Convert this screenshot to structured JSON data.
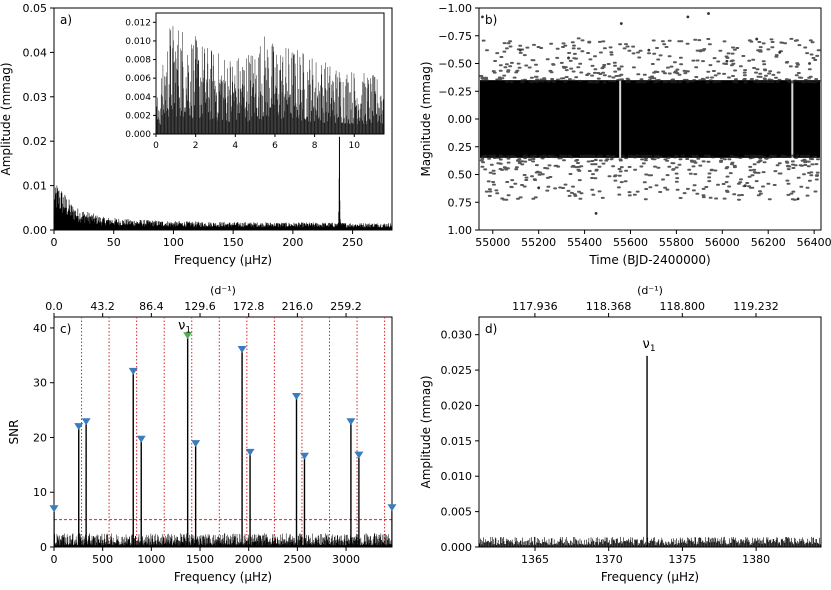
{
  "chart_data": [
    {
      "id": "a",
      "type": "line",
      "panel_label": "a)",
      "xlabel": "Frequency (µHz)",
      "ylabel": "Amplitude (mmag)",
      "xlim": [
        0,
        283
      ],
      "ylim": [
        0,
        0.05
      ],
      "x_ticks": [
        0,
        50,
        100,
        150,
        200,
        250
      ],
      "y_ticks": [
        0.0,
        0.01,
        0.02,
        0.03,
        0.04,
        0.05
      ],
      "y_tick_labels": [
        "0.00",
        "0.01",
        "0.02",
        "0.03",
        "0.04",
        "0.05"
      ],
      "series": [
        {
          "name": "amplitude spectrum (low-frequency)",
          "x": [
            0,
            2,
            5,
            10,
            15,
            20,
            30,
            40,
            60,
            100,
            150,
            200,
            238,
            239,
            240,
            250,
            283
          ],
          "values": [
            0.008,
            0.011,
            0.01,
            0.008,
            0.006,
            0.005,
            0.004,
            0.003,
            0.0025,
            0.002,
            0.0018,
            0.0017,
            0.0017,
            0.021,
            0.0017,
            0.0016,
            0.0016
          ]
        }
      ],
      "inset": {
        "xlim": [
          0,
          11.5
        ],
        "ylim": [
          0,
          0.013
        ],
        "x_ticks": [
          0,
          2,
          4,
          6,
          8,
          10
        ],
        "y_ticks": [
          0.0,
          0.002,
          0.004,
          0.006,
          0.008,
          0.01,
          0.012
        ],
        "y_tick_labels": [
          "0.000",
          "0.002",
          "0.004",
          "0.006",
          "0.008",
          "0.010",
          "0.012"
        ],
        "series": [
          {
            "name": "inset amplitude",
            "x": [
              0,
              0.7,
              1.4,
              2,
              3,
              4,
              5,
              5.5,
              6,
              7,
              8,
              9,
              10,
              11.5
            ],
            "values": [
              0.003,
              0.0122,
              0.012,
              0.0105,
              0.009,
              0.0085,
              0.0095,
              0.011,
              0.0098,
              0.0095,
              0.0085,
              0.0075,
              0.007,
              0.006
            ]
          }
        ]
      }
    },
    {
      "id": "b",
      "type": "scatter",
      "panel_label": "b)",
      "xlabel": "Time (BJD-2400000)",
      "ylabel": "Magnitude (mmag)",
      "xlim": [
        54940,
        56430
      ],
      "ylim": [
        1.0,
        -1.0
      ],
      "y_inverted": true,
      "x_ticks": [
        55000,
        55200,
        55400,
        55600,
        55800,
        56000,
        56200,
        56400
      ],
      "y_ticks": [
        -1.0,
        -0.75,
        -0.5,
        -0.25,
        0.0,
        0.25,
        0.5,
        0.75,
        1.0
      ],
      "y_tick_labels": [
        "−1.00",
        "−0.75",
        "−0.50",
        "−0.25",
        "0.00",
        "0.25",
        "0.50",
        "0.75",
        "1.00"
      ],
      "core_range": [
        -0.35,
        0.35
      ],
      "gaps": [
        55555,
        56305
      ],
      "outliers": [
        [
          54955,
          -0.92
        ],
        [
          55120,
          -0.62
        ],
        [
          55200,
          0.62
        ],
        [
          55330,
          -0.55
        ],
        [
          55450,
          0.85
        ],
        [
          55560,
          -0.86
        ],
        [
          55680,
          -0.62
        ],
        [
          55850,
          -0.92
        ],
        [
          55940,
          -0.95
        ],
        [
          56020,
          -0.52
        ],
        [
          56100,
          0.6
        ],
        [
          56150,
          -0.72
        ],
        [
          56250,
          -0.6
        ],
        [
          56330,
          0.72
        ],
        [
          56380,
          -0.5
        ]
      ]
    },
    {
      "id": "c",
      "type": "line",
      "panel_label": "c)",
      "xlabel": "Frequency (µHz)",
      "ylabel": "SNR",
      "top_axis_label": "(d⁻¹)",
      "xlim": [
        0,
        3472
      ],
      "ylim": [
        0,
        42
      ],
      "x_ticks": [
        0,
        500,
        1000,
        1500,
        2000,
        2500,
        3000
      ],
      "y_ticks": [
        0,
        10,
        20,
        30,
        40
      ],
      "top_ticks_d": [
        0.0,
        43.2,
        86.4,
        129.6,
        172.8,
        216.0,
        259.2
      ],
      "top_tick_labels": [
        "0.0",
        "43.2",
        "86.4",
        "129.6",
        "172.8",
        "216.0",
        "259.2"
      ],
      "nyquist_lines": [
        283,
        566,
        849,
        1132,
        1415,
        1698,
        1981,
        2264,
        2547,
        2830,
        3113,
        3396
      ],
      "threshold": 5,
      "peaks": [
        {
          "x": 0,
          "snr": 6.7,
          "color": "#3a7dbf"
        },
        {
          "x": 254,
          "snr": 21.7,
          "color": "#3a7dbf"
        },
        {
          "x": 330,
          "snr": 22.6,
          "color": "#3a7dbf"
        },
        {
          "x": 814,
          "snr": 31.8,
          "color": "#3a7dbf"
        },
        {
          "x": 896,
          "snr": 19.4,
          "color": "#3a7dbf"
        },
        {
          "x": 1373,
          "snr": 38.3,
          "color": "#4caf50"
        },
        {
          "x": 1455,
          "snr": 18.6,
          "color": "#3a7dbf"
        },
        {
          "x": 1932,
          "snr": 35.8,
          "color": "#3a7dbf"
        },
        {
          "x": 2014,
          "snr": 17.0,
          "color": "#3a7dbf"
        },
        {
          "x": 2491,
          "snr": 27.2,
          "color": "#3a7dbf"
        },
        {
          "x": 2573,
          "snr": 16.3,
          "color": "#3a7dbf"
        },
        {
          "x": 3050,
          "snr": 22.6,
          "color": "#3a7dbf"
        },
        {
          "x": 3132,
          "snr": 16.5,
          "color": "#3a7dbf"
        },
        {
          "x": 3472,
          "snr": 6.9,
          "color": "#3a7dbf"
        }
      ],
      "annotation": {
        "text": "ν",
        "sub": "1",
        "x": 1373,
        "y": 38.3
      }
    },
    {
      "id": "d",
      "type": "line",
      "panel_label": "d)",
      "xlabel": "Frequency (µHz)",
      "ylabel": "Amplitude (mmag)",
      "top_axis_label": "(d⁻¹)",
      "xlim": [
        1361.2,
        1384.4
      ],
      "ylim": [
        0,
        0.0325
      ],
      "x_ticks": [
        1365,
        1370,
        1375,
        1380
      ],
      "y_ticks": [
        0.0,
        0.005,
        0.01,
        0.015,
        0.02,
        0.025,
        0.03
      ],
      "y_tick_labels": [
        "0.000",
        "0.005",
        "0.010",
        "0.015",
        "0.020",
        "0.025",
        "0.030"
      ],
      "top_ticks_d": [
        117.936,
        118.368,
        118.8,
        119.232
      ],
      "top_tick_labels": [
        "117.936",
        "118.368",
        "118.800",
        "119.232"
      ],
      "noise_level": 0.0009,
      "peak": {
        "x": 1372.6,
        "amplitude": 0.027
      },
      "annotation": {
        "text": "ν",
        "sub": "1",
        "x": 1372.6,
        "y": 0.027
      }
    }
  ]
}
